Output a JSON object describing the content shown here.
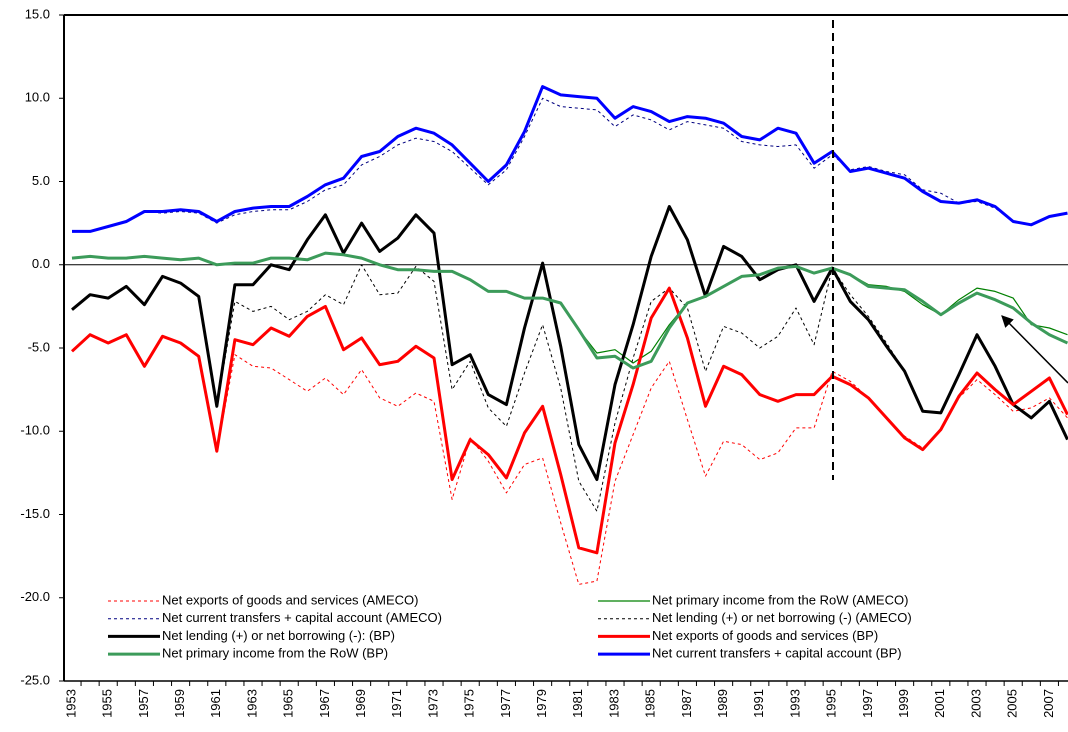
{
  "chart_data": {
    "type": "line",
    "categories": [
      "1953",
      null,
      "1955",
      null,
      "1957",
      null,
      "1959",
      null,
      "1961",
      null,
      "1963",
      null,
      "1965",
      null,
      "1967",
      null,
      "1969",
      null,
      "1971",
      null,
      "1973",
      null,
      "1975",
      null,
      "1977",
      null,
      "1979",
      null,
      "1981",
      null,
      "1983",
      null,
      "1985",
      null,
      "1987",
      null,
      "1989",
      null,
      "1991",
      null,
      "1993",
      null,
      "1995",
      null,
      "1997",
      null,
      "1999",
      null,
      "2001",
      null,
      "2003",
      null,
      "2005",
      null,
      "2007",
      null
    ],
    "ylim": [
      -25,
      15
    ],
    "yticks": [
      {
        "value": -25,
        "label": "-25.0"
      },
      {
        "value": -20,
        "label": "-20.0"
      },
      {
        "value": -15,
        "label": "-15.0"
      },
      {
        "value": -10,
        "label": "-10.0"
      },
      {
        "value": -5,
        "label": "-5.0"
      },
      {
        "value": 0,
        "label": "0.0"
      },
      {
        "value": 5,
        "label": "5.0"
      },
      {
        "value": 10,
        "label": "10.0"
      },
      {
        "value": 15,
        "label": "15.0"
      }
    ],
    "series": [
      {
        "name": "Net exports of goods and services (AMECO)",
        "color": "#ff0000",
        "dash": true,
        "width": 1,
        "values": [
          -5.2,
          -4.2,
          -4.7,
          -4.2,
          -6.1,
          -4.3,
          -4.7,
          -5.5,
          -11.2,
          -5.4,
          -6.1,
          -6.2,
          -6.9,
          -7.6,
          -6.8,
          -7.8,
          -6.3,
          -8.0,
          -8.5,
          -7.7,
          -8.2,
          -14.1,
          -10.4,
          -11.8,
          -13.7,
          -12.0,
          -11.6,
          -15.5,
          -19.2,
          -19.0,
          -13.0,
          -10.2,
          -7.4,
          -5.8,
          -9.3,
          -12.7,
          -10.6,
          -10.8,
          -11.7,
          -11.3,
          -9.8,
          -9.8,
          -6.4,
          -7.0,
          -8.0,
          -9.2,
          -10.3,
          -11.0,
          -10.0,
          -8.0,
          -6.9,
          -7.8,
          -8.8,
          -8.6,
          -8.0,
          -9.2
        ]
      },
      {
        "name": "Net primary income from the RoW (AMECO)",
        "color": "#008000",
        "dash": false,
        "width": 1.2,
        "values": [
          0.4,
          0.5,
          0.4,
          0.4,
          0.5,
          0.4,
          0.3,
          0.4,
          0.0,
          0.1,
          0.1,
          0.4,
          0.4,
          0.3,
          0.7,
          0.6,
          0.4,
          0.0,
          -0.3,
          -0.3,
          -0.4,
          -0.4,
          -0.9,
          -1.6,
          -1.6,
          -2.0,
          -2.0,
          -2.3,
          -3.9,
          -5.3,
          -5.1,
          -5.9,
          -5.2,
          -3.6,
          -2.3,
          -1.9,
          -1.3,
          -0.7,
          -0.6,
          -0.2,
          -0.1,
          -0.5,
          -0.2,
          -0.6,
          -1.2,
          -1.3,
          -1.6,
          -2.4,
          -3.0,
          -2.1,
          -1.4,
          -1.6,
          -2.0,
          -3.6,
          -3.8,
          -4.2
        ]
      },
      {
        "name": "Net current transfers + capital account  (AMECO)",
        "color": "#000080",
        "dash": true,
        "width": 1,
        "values": [
          2.0,
          2.0,
          2.3,
          2.6,
          3.2,
          3.1,
          3.2,
          3.1,
          2.5,
          3.0,
          3.2,
          3.3,
          3.3,
          3.8,
          4.5,
          4.8,
          6.0,
          6.5,
          7.2,
          7.6,
          7.4,
          6.8,
          5.8,
          4.8,
          5.7,
          7.7,
          10.0,
          9.5,
          9.4,
          9.3,
          8.3,
          9.0,
          8.7,
          8.1,
          8.6,
          8.4,
          8.2,
          7.4,
          7.2,
          7.1,
          7.2,
          5.8,
          6.6,
          5.7,
          5.9,
          5.6,
          5.4,
          4.5,
          4.3,
          3.7,
          3.8,
          3.4,
          2.6,
          2.4,
          2.9,
          3.1
        ]
      },
      {
        "name": "Net lending (+) or net borrowing (-) (AMECO)",
        "color": "#000000",
        "dash": true,
        "width": 1,
        "values": [
          -2.7,
          -1.8,
          -2.0,
          -1.3,
          -2.4,
          -0.7,
          -1.1,
          -1.9,
          -8.5,
          -2.2,
          -2.8,
          -2.5,
          -3.3,
          -2.8,
          -1.8,
          -2.4,
          0.0,
          -1.8,
          -1.7,
          -0.1,
          -1.0,
          -7.5,
          -5.8,
          -8.6,
          -9.7,
          -6.5,
          -3.6,
          -7.4,
          -13.0,
          -14.8,
          -9.5,
          -5.6,
          -2.2,
          -1.4,
          -2.6,
          -6.4,
          -3.7,
          -4.1,
          -5.0,
          -4.3,
          -2.6,
          -4.8,
          -0.2,
          -1.8,
          -3.1,
          -4.7,
          -6.4,
          -8.8,
          -8.9,
          -6.6,
          -4.2,
          -6.1,
          -8.4,
          -9.2,
          -8.2,
          -10.5
        ]
      },
      {
        "name": "Net lending (+) or net borrowing (-): (BP)",
        "color": "#000000",
        "dash": false,
        "width": 3,
        "values": [
          -2.7,
          -1.8,
          -2.0,
          -1.3,
          -2.4,
          -0.7,
          -1.1,
          -1.9,
          -8.5,
          -1.2,
          -1.2,
          0.0,
          -0.3,
          1.5,
          3.0,
          0.7,
          2.5,
          0.8,
          1.6,
          3.0,
          1.9,
          -6.0,
          -5.4,
          -7.8,
          -8.4,
          -3.8,
          0.1,
          -4.9,
          -10.8,
          -12.9,
          -7.2,
          -3.6,
          0.5,
          3.5,
          1.5,
          -1.9,
          1.1,
          0.5,
          -0.9,
          -0.3,
          0.0,
          -2.2,
          -0.2,
          -2.2,
          -3.3,
          -4.9,
          -6.4,
          -8.8,
          -8.9,
          -6.6,
          -4.2,
          -6.1,
          -8.4,
          -9.2,
          -8.2,
          -10.5
        ]
      },
      {
        "name": "Net exports of goods and services (BP)",
        "color": "#ff0000",
        "dash": false,
        "width": 3,
        "values": [
          -5.2,
          -4.2,
          -4.7,
          -4.2,
          -6.1,
          -4.3,
          -4.7,
          -5.5,
          -11.2,
          -4.5,
          -4.8,
          -3.8,
          -4.3,
          -3.1,
          -2.5,
          -5.1,
          -4.4,
          -6.0,
          -5.8,
          -4.9,
          -5.6,
          -12.9,
          -10.5,
          -11.4,
          -12.8,
          -10.1,
          -8.5,
          -12.6,
          -17.0,
          -17.3,
          -10.7,
          -7.2,
          -3.2,
          -1.4,
          -4.4,
          -8.5,
          -6.1,
          -6.6,
          -7.8,
          -8.2,
          -7.8,
          -7.8,
          -6.7,
          -7.2,
          -8.0,
          -9.2,
          -10.4,
          -11.1,
          -9.9,
          -7.9,
          -6.5,
          -7.5,
          -8.4,
          -7.6,
          -6.8,
          -9.0
        ]
      },
      {
        "name": "Net primary income from the RoW (BP)",
        "color": "#3c9b5a",
        "dash": false,
        "width": 3,
        "values": [
          0.4,
          0.5,
          0.4,
          0.4,
          0.5,
          0.4,
          0.3,
          0.4,
          0.0,
          0.1,
          0.1,
          0.4,
          0.4,
          0.3,
          0.7,
          0.6,
          0.4,
          0.0,
          -0.3,
          -0.3,
          -0.4,
          -0.4,
          -0.9,
          -1.6,
          -1.6,
          -2.0,
          -2.0,
          -2.3,
          -3.9,
          -5.6,
          -5.5,
          -6.2,
          -5.8,
          -3.8,
          -2.3,
          -1.9,
          -1.3,
          -0.7,
          -0.6,
          -0.2,
          -0.1,
          -0.5,
          -0.2,
          -0.6,
          -1.3,
          -1.4,
          -1.5,
          -2.2,
          -3.0,
          -2.3,
          -1.7,
          -2.1,
          -2.6,
          -3.5,
          -4.2,
          -4.7
        ]
      },
      {
        "name": "Net current transfers + capital account  (BP)",
        "color": "#0000ff",
        "dash": false,
        "width": 3,
        "values": [
          2.0,
          2.0,
          2.3,
          2.6,
          3.2,
          3.2,
          3.3,
          3.2,
          2.6,
          3.2,
          3.4,
          3.5,
          3.5,
          4.1,
          4.8,
          5.2,
          6.5,
          6.8,
          7.7,
          8.2,
          7.9,
          7.2,
          6.1,
          5.0,
          6.0,
          8.0,
          10.7,
          10.2,
          10.1,
          10.0,
          8.8,
          9.5,
          9.2,
          8.6,
          8.9,
          8.8,
          8.5,
          7.7,
          7.5,
          8.2,
          7.9,
          6.1,
          6.8,
          5.6,
          5.8,
          5.5,
          5.2,
          4.4,
          3.8,
          3.7,
          3.9,
          3.5,
          2.6,
          2.4,
          2.9,
          3.1
        ]
      }
    ]
  }
}
